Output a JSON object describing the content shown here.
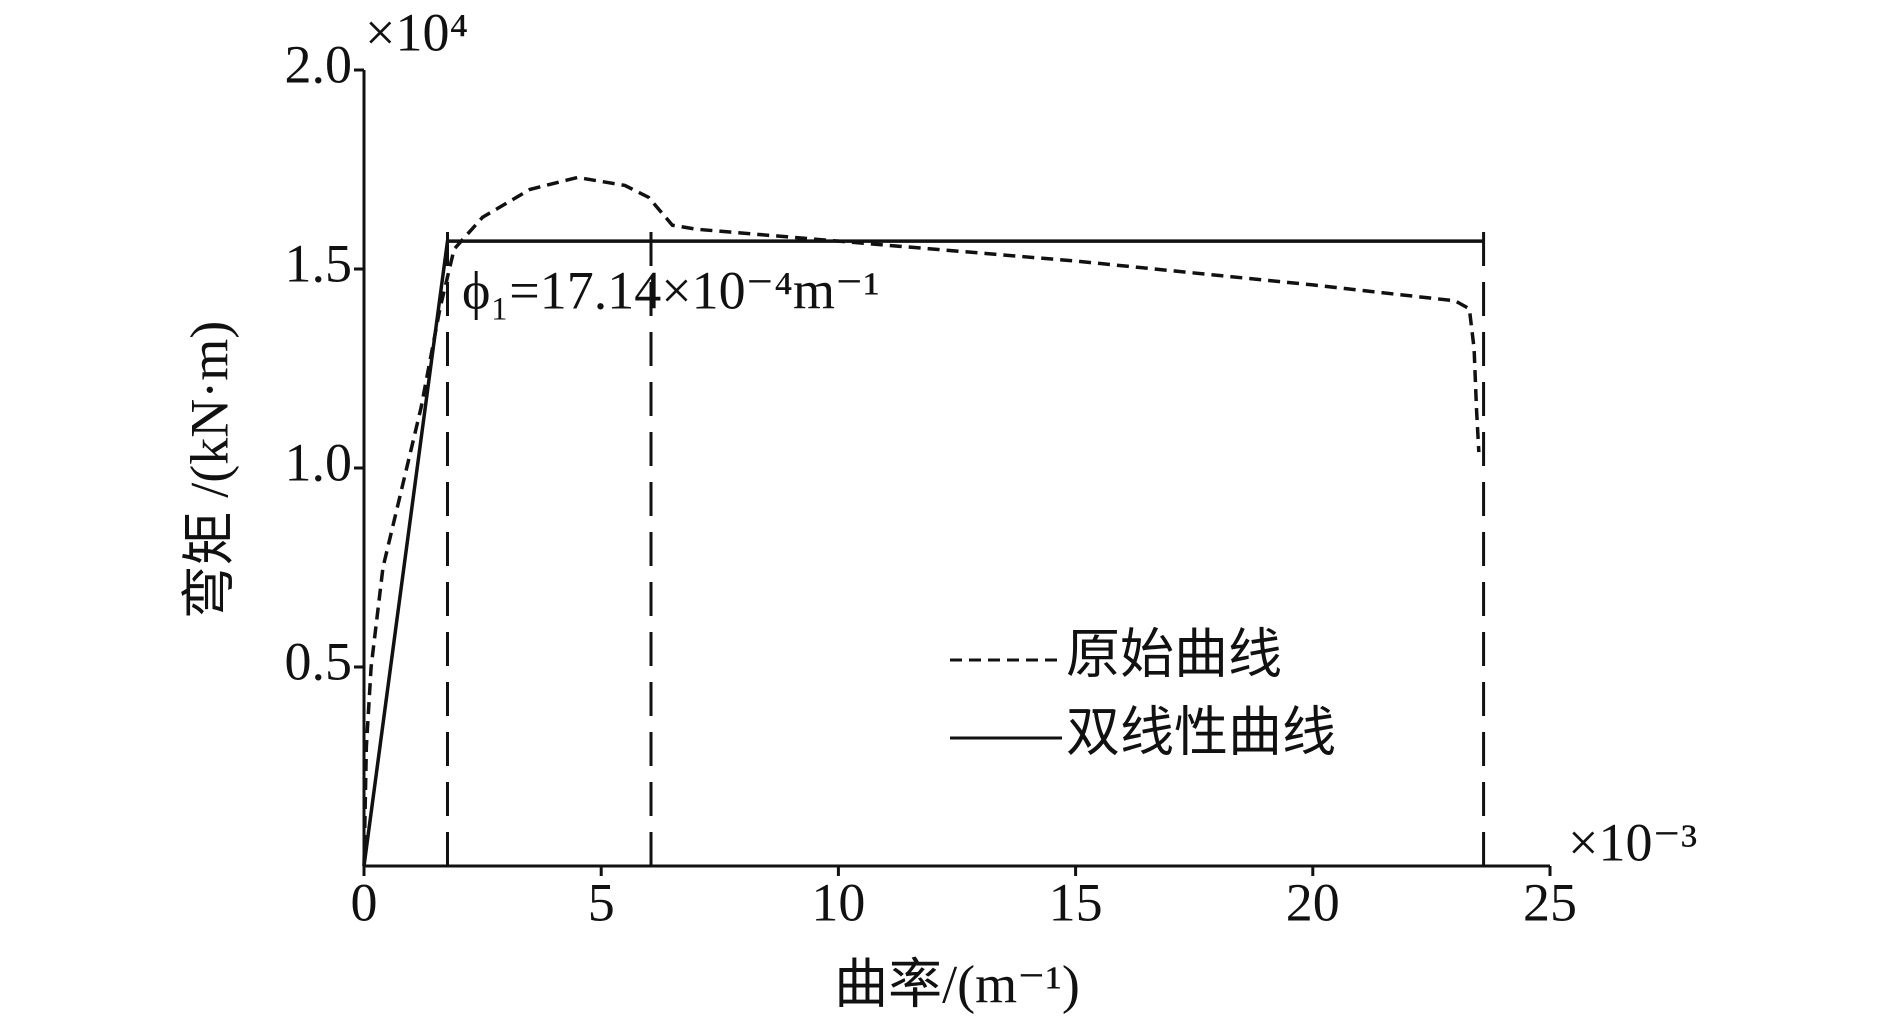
{
  "chart_data": {
    "type": "line",
    "xlabel": "曲率/(m⁻¹)",
    "ylabel": "弯矩 /(kN·m)",
    "x_multiplier": "×10⁻³",
    "y_multiplier": "×10⁴",
    "annotation": "ϕ₁=17.14×10⁻⁴m⁻¹",
    "xlim": [
      0,
      25
    ],
    "ylim": [
      0,
      2.0
    ],
    "xticks": [
      0,
      5,
      10,
      15,
      20,
      25
    ],
    "yticks": [
      0.5,
      {
        "value": 1.0,
        "label": "1.0"
      },
      1.5,
      {
        "value": 2.0,
        "label": "2.0"
      }
    ],
    "vlines": [
      1.76,
      6.05,
      23.6
    ],
    "legend": "center right",
    "series": [
      {
        "name": "原始曲线",
        "color": "#111111",
        "dash": true,
        "x": [
          0,
          0.05,
          0.15,
          0.4,
          0.8,
          1.2,
          1.6,
          1.9,
          2.5,
          3.5,
          4.5,
          5.5,
          6.0,
          6.5,
          7.0,
          10,
          15,
          20,
          23,
          23.3,
          23.4,
          23.45,
          23.5
        ],
        "values": [
          0,
          0.3,
          0.5,
          0.75,
          0.95,
          1.15,
          1.4,
          1.55,
          1.63,
          1.7,
          1.73,
          1.71,
          1.68,
          1.61,
          1.6,
          1.57,
          1.52,
          1.46,
          1.42,
          1.4,
          1.3,
          1.15,
          1.04
        ]
      },
      {
        "name": "双线性曲线",
        "color": "#111111",
        "dash": false,
        "x": [
          0,
          1.76,
          23.6
        ],
        "values": [
          0,
          1.57,
          1.57
        ]
      }
    ]
  }
}
